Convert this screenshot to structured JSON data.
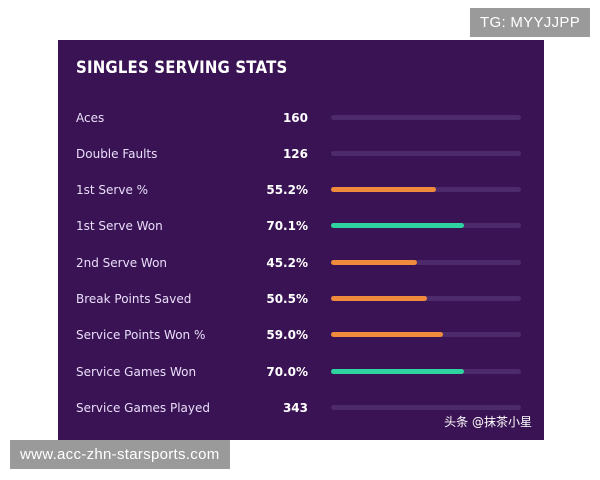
{
  "overlay": {
    "tag_text": "TG: MYYJJPP",
    "url_text": "www.acc-zhn-starsports.com",
    "watermark_text": "头条 @抹茶小星"
  },
  "card": {
    "title": "SINGLES SERVING STATS",
    "stats": [
      {
        "label": "Aces",
        "value": "160",
        "bar": null,
        "color": null
      },
      {
        "label": "Double Faults",
        "value": "126",
        "bar": null,
        "color": null
      },
      {
        "label": "1st Serve %",
        "value": "55.2%",
        "bar": 0.552,
        "color": "#f08a3c"
      },
      {
        "label": "1st Serve Won",
        "value": "70.1%",
        "bar": 0.701,
        "color": "#2fd3a0"
      },
      {
        "label": "2nd Serve Won",
        "value": "45.2%",
        "bar": 0.452,
        "color": "#f08a3c"
      },
      {
        "label": "Break Points Saved",
        "value": "50.5%",
        "bar": 0.505,
        "color": "#f08a3c"
      },
      {
        "label": "Service Points Won %",
        "value": "59.0%",
        "bar": 0.59,
        "color": "#f08a3c"
      },
      {
        "label": "Service Games Won",
        "value": "70.0%",
        "bar": 0.7,
        "color": "#2fd3a0"
      },
      {
        "label": "Service Games Played",
        "value": "343",
        "bar": null,
        "color": null
      }
    ]
  }
}
